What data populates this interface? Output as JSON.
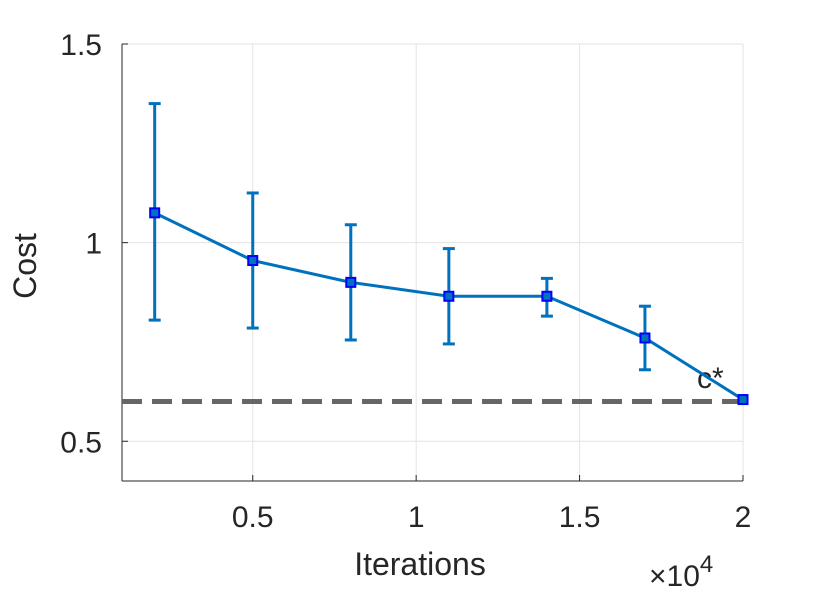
{
  "chart_data": {
    "type": "line",
    "title": "",
    "xlabel": "Iterations",
    "ylabel": "Cost",
    "x_multiplier": "×10",
    "x_multiplier_exp": "4",
    "xlim": [
      1000,
      20000
    ],
    "ylim": [
      0.4,
      1.5
    ],
    "grid": true,
    "x_ticks": [
      5000,
      10000,
      15000,
      20000
    ],
    "x_tick_labels": [
      "0.5",
      "1",
      "1.5",
      "2"
    ],
    "y_ticks": [
      0.5,
      1.0,
      1.5
    ],
    "y_tick_labels": [
      "0.5",
      "1",
      "1.5"
    ],
    "series": [
      {
        "name": "Cost",
        "color": "#0072BD",
        "marker_color": "#0000FF",
        "x": [
          2000,
          5000,
          8000,
          11000,
          14000,
          17000,
          20000
        ],
        "y": [
          1.075,
          0.955,
          0.9,
          0.865,
          0.865,
          0.76,
          0.605
        ],
        "error_low": [
          0.805,
          0.785,
          0.755,
          0.745,
          0.815,
          0.68,
          0.605
        ],
        "error_high": [
          1.35,
          1.125,
          1.045,
          0.985,
          0.91,
          0.84,
          0.605
        ]
      }
    ],
    "reference_line": {
      "y": 0.6,
      "color": "#666666",
      "style": "dashed",
      "label": "c*"
    }
  }
}
